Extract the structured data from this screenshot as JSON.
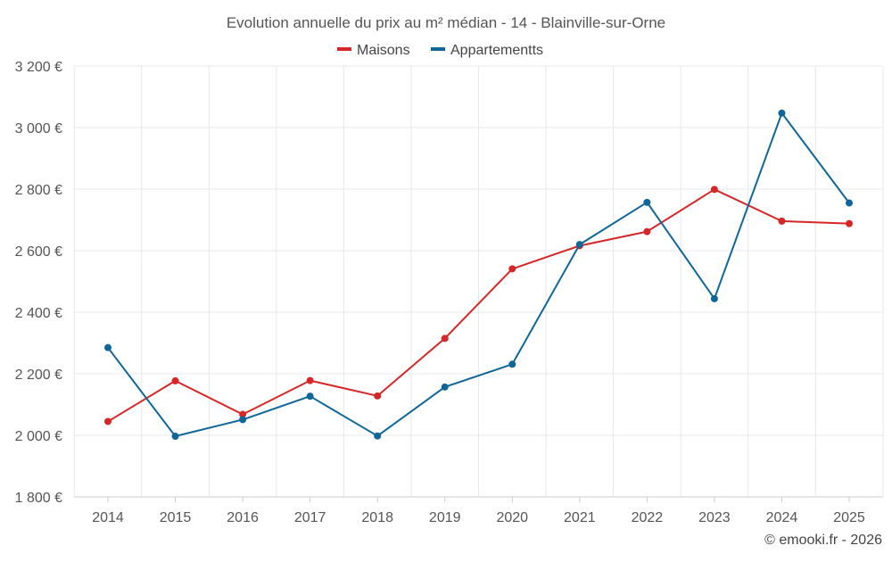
{
  "chart_data": {
    "type": "line",
    "title": "Evolution annuelle du prix au m² médian - 14 - Blainville-sur-Orne",
    "xlabel": "",
    "ylabel": "",
    "categories": [
      "2014",
      "2015",
      "2016",
      "2017",
      "2018",
      "2019",
      "2020",
      "2021",
      "2022",
      "2023",
      "2024",
      "2025"
    ],
    "ylim": [
      1800,
      3200
    ],
    "yticks": [
      1800,
      2000,
      2200,
      2400,
      2600,
      2800,
      3000,
      3200
    ],
    "ytick_labels": [
      "1 800 €",
      "2 000 €",
      "2 200 €",
      "2 400 €",
      "2 600 €",
      "2 800 €",
      "3 000 €",
      "3 200 €"
    ],
    "grid": true,
    "legend_position": "top-center",
    "series": [
      {
        "name": "Maisons",
        "color": "#d62728",
        "values": [
          2045,
          2177,
          2068,
          2178,
          2128,
          2315,
          2541,
          2616,
          2662,
          2799,
          2696,
          2688
        ]
      },
      {
        "name": "Appartementts",
        "color": "#0f6799",
        "values": [
          2285,
          1997,
          2051,
          2127,
          1998,
          2157,
          2231,
          2620,
          2757,
          2444,
          3047,
          2755
        ]
      }
    ]
  },
  "credit": "© emooki.fr - 2026"
}
